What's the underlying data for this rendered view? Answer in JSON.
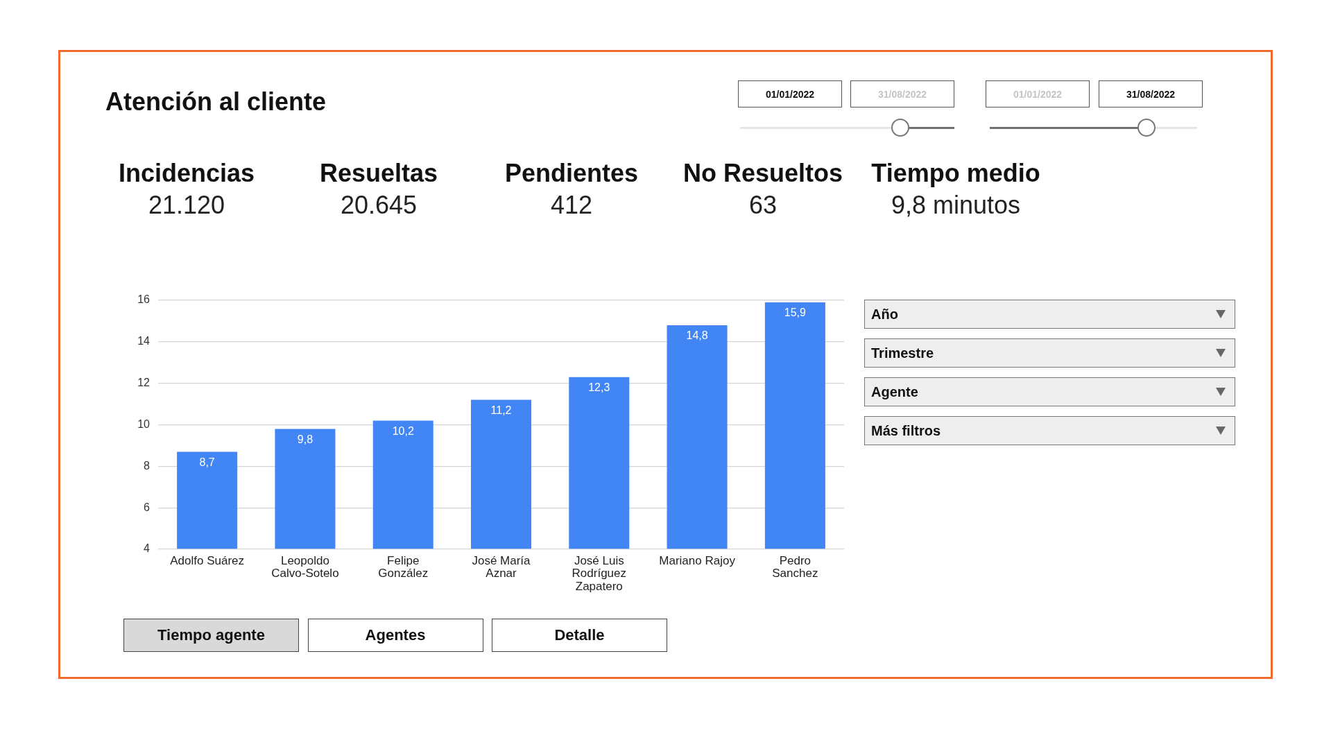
{
  "chart_data": [
    {
      "type": "other",
      "title": "Atención al cliente",
      "annotations": [
        "01/01/2022",
        "31/08/2022",
        "01/01/2022",
        "31/08/2022"
      ]
    },
    {
      "type": "other",
      "annotations": [
        "Incidencias",
        "21.120",
        "Resueltas",
        "20.645",
        "Pendientes",
        "412",
        "No Resueltos",
        "63",
        "Tiempo medio",
        "9,8 minutos"
      ]
    },
    {
      "type": "bar",
      "categories": [
        "Adolfo Suárez",
        "Leopoldo Calvo-Sotelo",
        "Felipe González",
        "José María Aznar",
        "José Luis Rodríguez Zapatero",
        "Mariano Rajoy",
        "Pedro Sanchez"
      ],
      "values": [
        8.7,
        9.8,
        10.2,
        11.2,
        12.3,
        14.8,
        15.9
      ],
      "value_labels": [
        "8,7",
        "9,8",
        "10,2",
        "11,2",
        "12,3",
        "14,8",
        "15,9"
      ],
      "color": "#4285f4",
      "ylim": [
        4,
        16
      ],
      "yticks": [
        4,
        6,
        8,
        10,
        12,
        14,
        16
      ],
      "grid": "y"
    },
    {
      "type": "other",
      "annotations": [
        "Año",
        "Trimestre",
        "Agente",
        "Más filtros"
      ]
    },
    {
      "type": "other",
      "annotations": [
        "Tiempo agente",
        "Agentes",
        "Detalle"
      ]
    }
  ]
}
